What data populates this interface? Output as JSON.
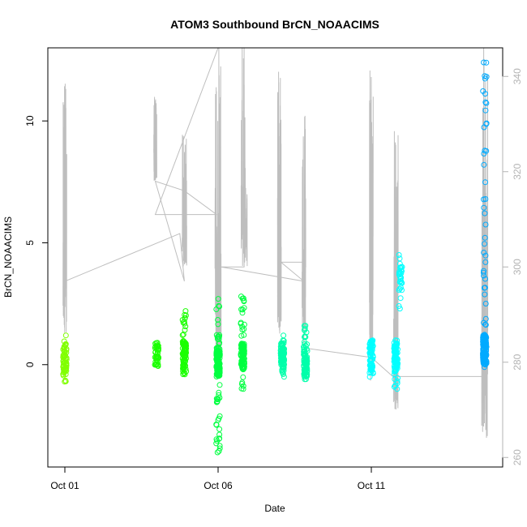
{
  "chart_data": {
    "type": "scatter",
    "title": "ATOM3 Southbound BrCN_NOAACIMS",
    "xlabel": "Date",
    "ylabel": "BrCN_NOAACIMS",
    "x_ticks": [
      "Oct 01",
      "Oct 06",
      "Oct 11"
    ],
    "x_range_days": [
      0.0,
      15.0
    ],
    "ylim": [
      -4.2,
      13.0
    ],
    "y_ticks": [
      0,
      5,
      10
    ],
    "y2_ticks": [
      260,
      280,
      300,
      320,
      340
    ],
    "y2lim": [
      258,
      346
    ],
    "grid": false,
    "legend": "none",
    "colors": {
      "overlay_line": "#bebebe",
      "right_axis": "#b3b3b3",
      "lime": "#80ff00",
      "green": "#1aff00",
      "spring": "#00ff40",
      "teal": "#00ffaa",
      "cyan": "#00ffff",
      "sky": "#00aaff"
    },
    "series": [
      {
        "x_day": 0.0,
        "color": "lime",
        "center": 0.2,
        "min": -0.7,
        "max": 1.2,
        "count": 60
      },
      {
        "x_day": 3.0,
        "color": "green",
        "center": 0.35,
        "min": 0.0,
        "max": 0.9,
        "count": 40
      },
      {
        "x_day": 3.9,
        "color": "green",
        "center": 0.4,
        "min": -0.4,
        "max": 2.2,
        "count": 90
      },
      {
        "x_day": 5.0,
        "color": "spring",
        "center": 0.1,
        "min": -3.6,
        "max": 2.7,
        "count": 140
      },
      {
        "x_day": 5.8,
        "color": "spring",
        "center": 0.3,
        "min": -1.0,
        "max": 2.8,
        "count": 110
      },
      {
        "x_day": 7.1,
        "color": "teal",
        "center": 0.3,
        "min": -0.5,
        "max": 1.2,
        "count": 90
      },
      {
        "x_day": 7.85,
        "color": "teal",
        "center": 0.1,
        "min": -0.6,
        "max": 1.6,
        "count": 90
      },
      {
        "x_day": 10.0,
        "color": "cyan",
        "center": 0.4,
        "min": -0.5,
        "max": 1.0,
        "count": 70
      },
      {
        "x_day": 10.8,
        "color": "cyan",
        "center": 0.3,
        "min": -1.0,
        "max": 1.0,
        "count": 80
      },
      {
        "x_day": 10.95,
        "color": "cyan",
        "center": 3.6,
        "min": 2.3,
        "max": 4.5,
        "count": 30
      },
      {
        "x_day": 13.7,
        "color": "sky",
        "center": 0.6,
        "min": -0.1,
        "max": 12.4,
        "count": 160
      }
    ],
    "overlay": {
      "axis": "right",
      "bursts": [
        {
          "x_day": 0.0,
          "base": 286,
          "top": 341,
          "width": 0.12
        },
        {
          "x_day": 2.95,
          "base": 318,
          "top": 336,
          "width": 0.1
        },
        {
          "x_day": 3.9,
          "base": 300,
          "top": 328,
          "width": 0.15
        },
        {
          "x_day": 5.0,
          "base": 278,
          "top": 349,
          "width": 0.2
        },
        {
          "x_day": 5.85,
          "base": 300,
          "top": 349,
          "width": 0.2
        },
        {
          "x_day": 7.0,
          "base": 286,
          "top": 346,
          "width": 0.12
        },
        {
          "x_day": 7.8,
          "base": 286,
          "top": 333,
          "width": 0.12
        },
        {
          "x_day": 10.0,
          "base": 276,
          "top": 345,
          "width": 0.12
        },
        {
          "x_day": 10.8,
          "base": 270,
          "top": 331,
          "width": 0.15
        },
        {
          "x_day": 13.7,
          "base": 264,
          "top": 348,
          "width": 0.2
        }
      ],
      "connectors": [
        [
          0.0,
          297
        ],
        [
          3.75,
          307
        ],
        [
          3.9,
          297
        ],
        [
          2.95,
          318
        ],
        [
          3.9,
          316
        ],
        [
          4.95,
          311
        ],
        [
          2.95,
          311
        ],
        [
          5.0,
          346
        ],
        [
          5.85,
          346
        ],
        [
          5.85,
          300
        ],
        [
          5.1,
          300
        ],
        [
          7.8,
          297
        ],
        [
          7.05,
          301
        ],
        [
          7.8,
          301
        ],
        [
          7.8,
          283
        ],
        [
          10.0,
          281
        ],
        [
          10.7,
          277
        ],
        [
          13.6,
          277
        ]
      ]
    }
  }
}
